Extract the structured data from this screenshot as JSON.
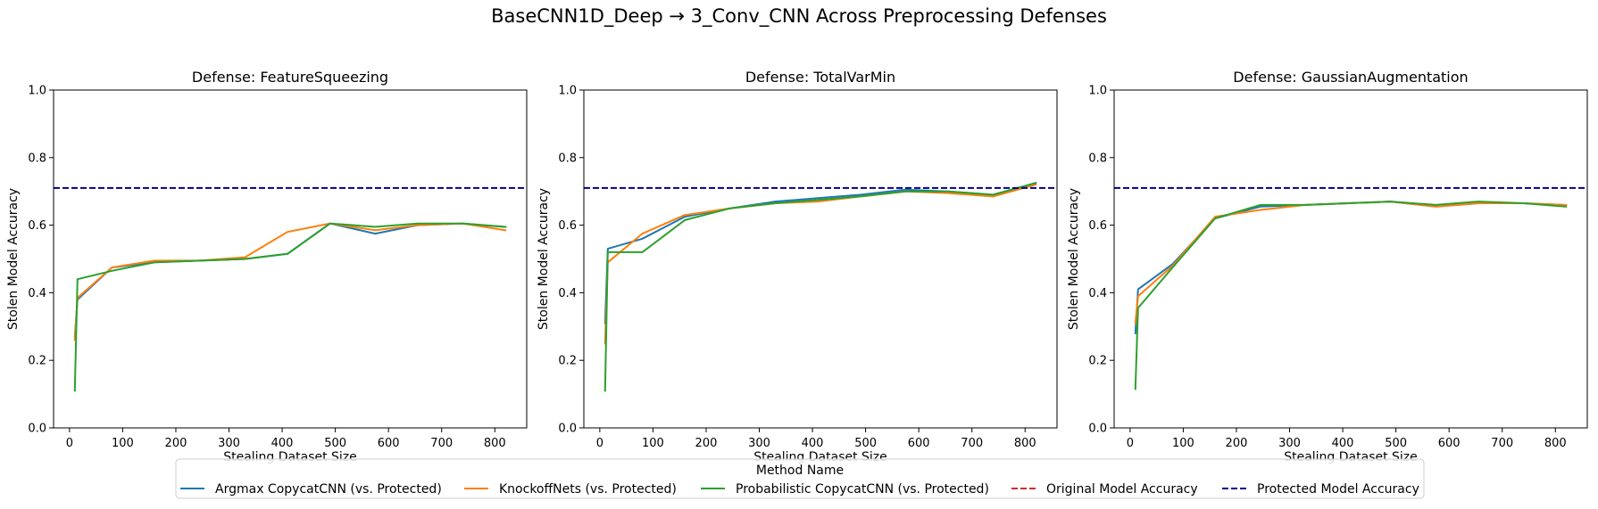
{
  "figure": {
    "suptitle": "BaseCNN1D_Deep → 3_Conv_CNN Across Preprocessing Defenses"
  },
  "legend": {
    "title": "Method Name",
    "entries": [
      {
        "label": "Argmax CopycatCNN (vs. Protected)",
        "color": "#1f77b4",
        "dashed": false
      },
      {
        "label": "KnockoffNets (vs. Protected)",
        "color": "#ff7f0e",
        "dashed": false
      },
      {
        "label": "Probabilistic CopycatCNN (vs. Protected)",
        "color": "#2ca02c",
        "dashed": false
      },
      {
        "label": "Original Model Accuracy",
        "color": "#d62728",
        "dashed": true
      },
      {
        "label": "Protected Model Accuracy",
        "color": "#00008b",
        "dashed": true
      }
    ]
  },
  "chart_data": [
    {
      "type": "line",
      "title": "Defense: FeatureSqueezing",
      "xlabel": "Stealing Dataset Size",
      "ylabel": "Stolen Model Accuracy",
      "xlim": [
        -30,
        860
      ],
      "ylim": [
        0,
        1.0
      ],
      "xticks": [
        0,
        100,
        200,
        300,
        400,
        500,
        600,
        700,
        800
      ],
      "yticks": [
        0.0,
        0.2,
        0.4,
        0.6,
        0.8,
        1.0
      ],
      "grid": false,
      "protected_accuracy": 0.71,
      "series": [
        {
          "name": "Argmax CopycatCNN (vs. Protected)",
          "color": "#1f77b4",
          "x": [
            10,
            15,
            80,
            160,
            245,
            330,
            410,
            490,
            575,
            655,
            740,
            820
          ],
          "y": [
            0.27,
            0.38,
            0.475,
            0.49,
            0.495,
            0.5,
            0.515,
            0.605,
            0.575,
            0.6,
            0.605,
            0.595
          ]
        },
        {
          "name": "KnockoffNets (vs. Protected)",
          "color": "#ff7f0e",
          "x": [
            10,
            15,
            80,
            160,
            245,
            330,
            410,
            490,
            575,
            655,
            740,
            820
          ],
          "y": [
            0.26,
            0.385,
            0.475,
            0.495,
            0.495,
            0.505,
            0.58,
            0.605,
            0.585,
            0.6,
            0.605,
            0.585
          ]
        },
        {
          "name": "Probabilistic CopycatCNN (vs. Protected)",
          "color": "#2ca02c",
          "x": [
            10,
            15,
            80,
            160,
            245,
            330,
            410,
            490,
            575,
            655,
            740,
            820
          ],
          "y": [
            0.11,
            0.44,
            0.465,
            0.49,
            0.495,
            0.5,
            0.515,
            0.605,
            0.595,
            0.605,
            0.605,
            0.595
          ]
        }
      ]
    },
    {
      "type": "line",
      "title": "Defense: TotalVarMin",
      "xlabel": "Stealing Dataset Size",
      "ylabel": "Stolen Model Accuracy",
      "xlim": [
        -30,
        860
      ],
      "ylim": [
        0,
        1.0
      ],
      "xticks": [
        0,
        100,
        200,
        300,
        400,
        500,
        600,
        700,
        800
      ],
      "yticks": [
        0.0,
        0.2,
        0.4,
        0.6,
        0.8,
        1.0
      ],
      "grid": false,
      "protected_accuracy": 0.71,
      "series": [
        {
          "name": "Argmax CopycatCNN (vs. Protected)",
          "color": "#1f77b4",
          "x": [
            10,
            15,
            80,
            160,
            245,
            330,
            410,
            490,
            575,
            655,
            740,
            820
          ],
          "y": [
            0.31,
            0.53,
            0.56,
            0.625,
            0.65,
            0.67,
            0.68,
            0.69,
            0.705,
            0.7,
            0.69,
            0.725
          ]
        },
        {
          "name": "KnockoffNets (vs. Protected)",
          "color": "#ff7f0e",
          "x": [
            10,
            15,
            80,
            160,
            245,
            330,
            410,
            490,
            575,
            655,
            740,
            820
          ],
          "y": [
            0.25,
            0.49,
            0.575,
            0.63,
            0.65,
            0.665,
            0.67,
            0.685,
            0.7,
            0.695,
            0.685,
            0.72
          ]
        },
        {
          "name": "Probabilistic CopycatCNN (vs. Protected)",
          "color": "#2ca02c",
          "x": [
            10,
            15,
            80,
            160,
            245,
            330,
            410,
            490,
            575,
            655,
            740,
            820
          ],
          "y": [
            0.11,
            0.52,
            0.52,
            0.615,
            0.65,
            0.665,
            0.675,
            0.685,
            0.7,
            0.7,
            0.69,
            0.725
          ]
        }
      ]
    },
    {
      "type": "line",
      "title": "Defense: GaussianAugmentation",
      "xlabel": "Stealing Dataset Size",
      "ylabel": "Stolen Model Accuracy",
      "xlim": [
        -30,
        860
      ],
      "ylim": [
        0,
        1.0
      ],
      "xticks": [
        0,
        100,
        200,
        300,
        400,
        500,
        600,
        700,
        800
      ],
      "yticks": [
        0.0,
        0.2,
        0.4,
        0.6,
        0.8,
        1.0
      ],
      "grid": false,
      "protected_accuracy": 0.71,
      "series": [
        {
          "name": "Argmax CopycatCNN (vs. Protected)",
          "color": "#1f77b4",
          "x": [
            10,
            15,
            80,
            160,
            245,
            330,
            410,
            490,
            575,
            655,
            740,
            820
          ],
          "y": [
            0.28,
            0.41,
            0.485,
            0.62,
            0.655,
            0.66,
            0.665,
            0.67,
            0.655,
            0.665,
            0.665,
            0.66
          ]
        },
        {
          "name": "KnockoffNets (vs. Protected)",
          "color": "#ff7f0e",
          "x": [
            10,
            15,
            80,
            160,
            245,
            330,
            410,
            490,
            575,
            655,
            740,
            820
          ],
          "y": [
            0.31,
            0.39,
            0.48,
            0.625,
            0.645,
            0.66,
            0.665,
            0.67,
            0.655,
            0.665,
            0.665,
            0.66
          ]
        },
        {
          "name": "Probabilistic CopycatCNN (vs. Protected)",
          "color": "#2ca02c",
          "x": [
            10,
            15,
            80,
            160,
            245,
            330,
            410,
            490,
            575,
            655,
            740,
            820
          ],
          "y": [
            0.115,
            0.355,
            0.475,
            0.62,
            0.66,
            0.66,
            0.665,
            0.67,
            0.66,
            0.67,
            0.665,
            0.655
          ]
        }
      ]
    }
  ]
}
